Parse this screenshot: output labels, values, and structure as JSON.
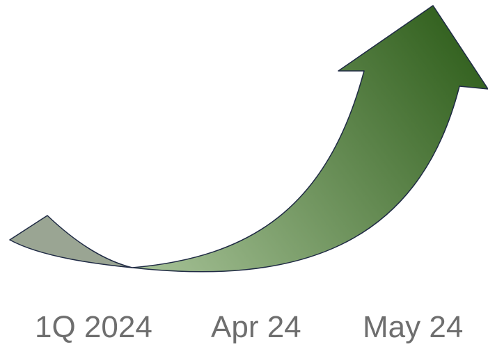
{
  "arrow": {
    "icon": "curved-up-arrow-icon",
    "colors": {
      "tail_fill": "#9aa593",
      "body_light": "#a9c49a",
      "body_dark": "#2f5e1b",
      "outline": "#1f2a44"
    }
  },
  "labels": [
    "1Q 2024",
    "Apr 24",
    "May 24"
  ]
}
